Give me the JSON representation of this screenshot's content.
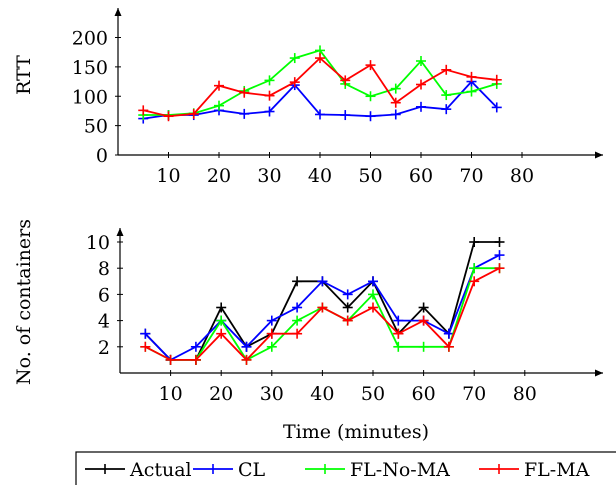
{
  "chart_data": [
    {
      "type": "line",
      "title": "",
      "xlabel": "",
      "ylabel": "RTT",
      "xlim": [
        0,
        82
      ],
      "ylim": [
        0,
        210
      ],
      "x_ticks": [
        10,
        20,
        30,
        40,
        50,
        60,
        70,
        80
      ],
      "y_ticks": [
        0,
        50,
        100,
        150,
        200
      ],
      "grid": false,
      "x": [
        5,
        10,
        15,
        20,
        25,
        30,
        35,
        40,
        45,
        50,
        55,
        60,
        65,
        70,
        75
      ],
      "series": [
        {
          "name": "CL",
          "color": "#0000ff",
          "values": [
            62,
            68,
            68,
            76,
            70,
            74,
            119,
            69,
            68,
            66,
            69,
            82,
            78,
            125,
            81
          ]
        },
        {
          "name": "FL-No-MA",
          "color": "#00ff00",
          "values": [
            68,
            68,
            71,
            84,
            109,
            127,
            165,
            178,
            121,
            100,
            113,
            160,
            102,
            108,
            121
          ]
        },
        {
          "name": "FL-MA",
          "color": "#ff0000",
          "values": [
            76,
            66,
            70,
            118,
            106,
            101,
            124,
            165,
            127,
            153,
            89,
            120,
            145,
            133,
            128
          ]
        }
      ]
    },
    {
      "type": "line",
      "title": "",
      "xlabel": "Time (minutes)",
      "ylabel": "No. of containers",
      "xlim": [
        0,
        82
      ],
      "ylim": [
        0,
        11
      ],
      "x_ticks": [
        10,
        20,
        30,
        40,
        50,
        60,
        70,
        80
      ],
      "y_ticks": [
        2,
        4,
        6,
        8,
        10
      ],
      "grid": false,
      "x": [
        5,
        10,
        15,
        20,
        25,
        30,
        35,
        40,
        45,
        50,
        55,
        60,
        65,
        70,
        75
      ],
      "series": [
        {
          "name": "Actual",
          "color": "#000000",
          "values": [
            3,
            1,
            1,
            5,
            2,
            3,
            7,
            7,
            5,
            7,
            3,
            5,
            3,
            10,
            10
          ]
        },
        {
          "name": "CL",
          "color": "#0000ff",
          "values": [
            3,
            1,
            2,
            4,
            2,
            4,
            5,
            7,
            6,
            7,
            4,
            4,
            3,
            8,
            9
          ]
        },
        {
          "name": "FL-No-MA",
          "color": "#00ff00",
          "values": [
            2,
            1,
            1,
            4,
            1,
            2,
            4,
            5,
            4,
            6,
            2,
            2,
            2,
            8,
            8
          ]
        },
        {
          "name": "FL-MA",
          "color": "#ff0000",
          "values": [
            2,
            1,
            1,
            3,
            1,
            3,
            3,
            5,
            4,
            5,
            3,
            4,
            2,
            7,
            8
          ]
        }
      ]
    }
  ],
  "legend": {
    "placement": "bottom",
    "entries": [
      {
        "name": "Actual",
        "color": "#000000"
      },
      {
        "name": "CL",
        "color": "#0000ff"
      },
      {
        "name": "FL-No-MA",
        "color": "#00ff00"
      },
      {
        "name": "FL-MA",
        "color": "#ff0000"
      }
    ]
  }
}
